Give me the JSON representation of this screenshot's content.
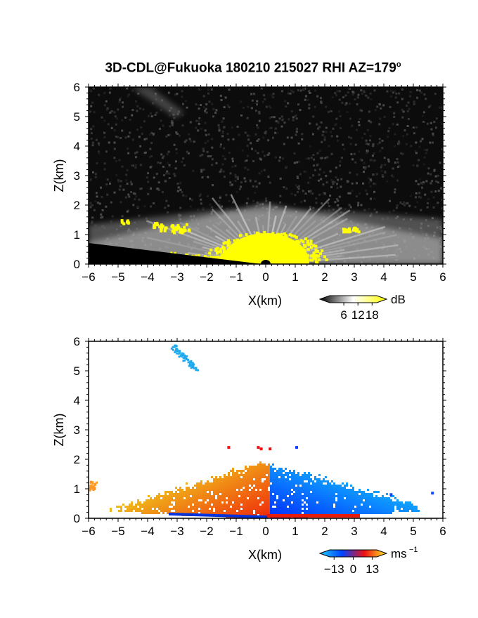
{
  "title": "3D-CDL@Fukuoka 180210 215027 RHI AZ=179",
  "title_degree": "o",
  "chart_data": [
    {
      "type": "heatmap",
      "panel": "reflectivity",
      "xlabel": "X(km)",
      "ylabel": "Z(km)",
      "xlim": [
        -6,
        6
      ],
      "ylim": [
        0,
        6
      ],
      "xticks": [
        "−6",
        "−5",
        "−4",
        "−3",
        "−2",
        "−1",
        "0",
        "1",
        "2",
        "3",
        "4",
        "5",
        "6"
      ],
      "yticks": [
        "0",
        "1",
        "2",
        "3",
        "4",
        "5",
        "6"
      ],
      "colorbar": {
        "unit": "dB",
        "ticks": [
          "6",
          "12",
          "18"
        ],
        "range": [
          0,
          20
        ],
        "colors": [
          "#000000",
          "#ffffff",
          "#ffff00"
        ]
      },
      "background_color": "#0c0c0c",
      "saturated_color": "#ffff00"
    },
    {
      "type": "heatmap",
      "panel": "doppler velocity",
      "xlabel": "X(km)",
      "ylabel": "Z(km)",
      "xlim": [
        -6,
        6
      ],
      "ylim": [
        0,
        6
      ],
      "xticks": [
        "−6",
        "−5",
        "−4",
        "−3",
        "−2",
        "−1",
        "0",
        "1",
        "2",
        "3",
        "4",
        "5",
        "6"
      ],
      "yticks": [
        "0",
        "1",
        "2",
        "3",
        "4",
        "5",
        "6"
      ],
      "colorbar": {
        "unit": "ms",
        "unit_exp": "−1",
        "ticks": [
          "−13",
          "0",
          "13"
        ],
        "range": [
          -16,
          16
        ],
        "colors": [
          "#22ccff",
          "#0044ff",
          "#ee1111",
          "#ffee22"
        ]
      },
      "approach_side": "x>0 (blue, negative)",
      "recede_side": "x<0 (red/orange, positive)"
    }
  ]
}
